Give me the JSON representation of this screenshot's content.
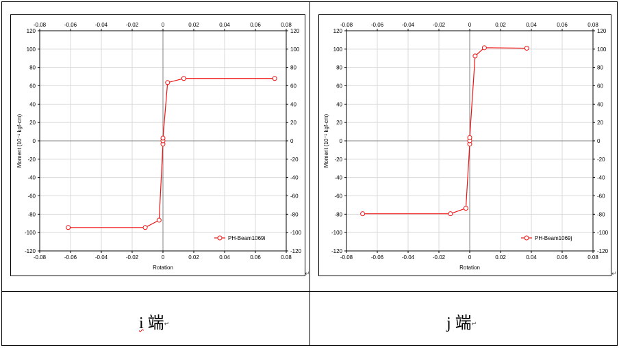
{
  "captions": [
    {
      "letter": "i",
      "text": "端",
      "mark": "↵"
    },
    {
      "letter": "j",
      "text": "端",
      "mark": "↵"
    }
  ],
  "chart_data": [
    {
      "type": "line",
      "title": "",
      "xlabel": "Rotation",
      "ylabel": "Moment (10⁻¹ kgf-cm)",
      "xlim": [
        -0.08,
        0.08
      ],
      "ylim": [
        -120,
        120
      ],
      "xticks": [
        "-0.08",
        "-0.06",
        "-0.04",
        "-0.02",
        "0",
        "0.02",
        "0.04",
        "0.06",
        "0.08"
      ],
      "yticks": [
        "120",
        "100",
        "80",
        "60",
        "40",
        "20",
        "0",
        "-20",
        "-40",
        "-60",
        "-80",
        "-100",
        "-120"
      ],
      "grid": true,
      "legend_position": "bottom-right",
      "series": [
        {
          "name": "PH-Beam1069i",
          "color": "#ee1111",
          "points": [
            [
              -0.0615,
              -94.5
            ],
            [
              -0.0115,
              -94.5
            ],
            [
              -0.0025,
              -86.5
            ],
            [
              0,
              -3.5
            ],
            [
              0,
              0
            ],
            [
              0,
              3
            ],
            [
              0.003,
              63.5
            ],
            [
              0.0135,
              68
            ],
            [
              0.0725,
              68
            ]
          ]
        }
      ]
    },
    {
      "type": "line",
      "title": "",
      "xlabel": "Rotation",
      "ylabel": "Moment (10⁻¹ kgf-cm)",
      "xlim": [
        -0.08,
        0.08
      ],
      "ylim": [
        -120,
        120
      ],
      "xticks": [
        "-0.08",
        "-0.06",
        "-0.04",
        "-0.02",
        "0",
        "0.02",
        "0.04",
        "0.06",
        "0.08"
      ],
      "yticks": [
        "120",
        "100",
        "80",
        "60",
        "40",
        "20",
        "0",
        "-20",
        "-40",
        "-60",
        "-80",
        "-100",
        "-120"
      ],
      "grid": true,
      "legend_position": "bottom-right",
      "series": [
        {
          "name": "PH-Beam1069j",
          "color": "#ee1111",
          "points": [
            [
              -0.0695,
              -79.5
            ],
            [
              -0.0125,
              -79.5
            ],
            [
              -0.0025,
              -73.5
            ],
            [
              0,
              -3.5
            ],
            [
              0,
              0
            ],
            [
              0,
              3.5
            ],
            [
              0.0035,
              92.5
            ],
            [
              0.0095,
              101.5
            ],
            [
              0.037,
              101
            ]
          ]
        }
      ]
    }
  ]
}
